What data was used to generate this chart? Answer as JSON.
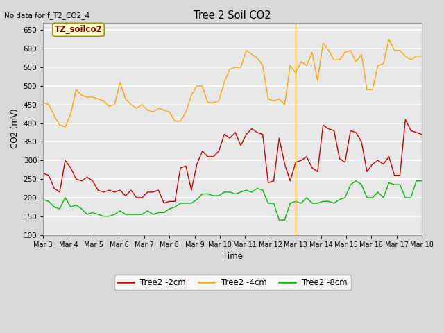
{
  "title": "Tree 2 Soil CO2",
  "xlabel": "Time",
  "ylabel": "CO2 (mV)",
  "no_data_text": "No data for f_T2_CO2_4",
  "tz_label": "TZ_soilco2",
  "ylim": [
    100,
    670
  ],
  "yticks": [
    100,
    150,
    200,
    250,
    300,
    350,
    400,
    450,
    500,
    550,
    600,
    650
  ],
  "fig_facecolor": "#d8d8d8",
  "ax_facecolor": "#e8e8e8",
  "line_colors": {
    "Tree2 -2cm": "#cc0000",
    "Tree2 -4cm": "#ffa500",
    "Tree2 -8cm": "#00bb00"
  },
  "legend_entries": [
    "Tree2 -2cm",
    "Tree2 -4cm",
    "Tree2 -8cm"
  ],
  "x_tick_labels": [
    "Mar 3",
    "Mar 4",
    "Mar 5",
    "Mar 6",
    "Mar 7",
    "Mar 8",
    "Mar 9",
    "Mar 10",
    "Mar 11",
    "Mar 12",
    "Mar 13",
    "Mar 14",
    "Mar 15",
    "Mar 16",
    "Mar 17",
    "Mar 18"
  ],
  "num_days": 16,
  "vertical_line_day": 10,
  "tree2_2cm": [
    265,
    260,
    225,
    215,
    300,
    280,
    250,
    245,
    255,
    245,
    220,
    215,
    220,
    215,
    220,
    205,
    220,
    200,
    200,
    215,
    215,
    220,
    185,
    190,
    190,
    280,
    285,
    220,
    290,
    325,
    310,
    310,
    325,
    370,
    360,
    375,
    340,
    370,
    385,
    375,
    370,
    240,
    245,
    360,
    290,
    245,
    295,
    300,
    310,
    280,
    270,
    395,
    385,
    380,
    305,
    295,
    380,
    375,
    350,
    270,
    290,
    300,
    290,
    310,
    260,
    260,
    410,
    380,
    375,
    370
  ],
  "tree2_4cm": [
    455,
    450,
    420,
    395,
    390,
    425,
    490,
    475,
    470,
    470,
    465,
    460,
    445,
    450,
    510,
    465,
    450,
    440,
    450,
    435,
    430,
    440,
    435,
    430,
    405,
    405,
    430,
    475,
    500,
    500,
    455,
    455,
    460,
    510,
    545,
    550,
    550,
    595,
    585,
    575,
    555,
    465,
    460,
    465,
    450,
    555,
    535,
    565,
    555,
    590,
    515,
    615,
    595,
    570,
    570,
    590,
    595,
    565,
    585,
    490,
    490,
    555,
    560,
    625,
    595,
    595,
    580,
    570,
    580,
    580
  ],
  "tree2_8cm": [
    195,
    190,
    175,
    170,
    200,
    175,
    180,
    170,
    155,
    160,
    155,
    150,
    150,
    155,
    165,
    155,
    155,
    155,
    155,
    165,
    155,
    160,
    160,
    170,
    175,
    185,
    185,
    185,
    195,
    210,
    210,
    205,
    205,
    215,
    215,
    210,
    215,
    220,
    215,
    225,
    220,
    185,
    185,
    140,
    140,
    185,
    190,
    185,
    200,
    185,
    185,
    190,
    190,
    185,
    195,
    200,
    235,
    245,
    235,
    200,
    200,
    215,
    200,
    240,
    235,
    235,
    200,
    200,
    245,
    245
  ]
}
